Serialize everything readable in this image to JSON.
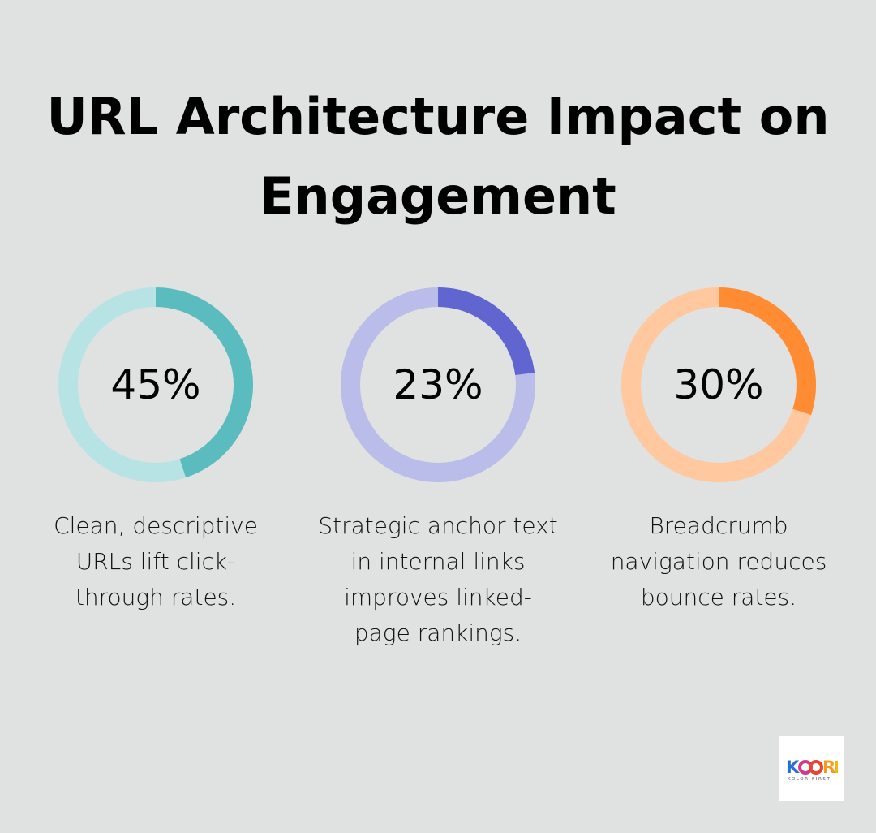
{
  "title": "URL Architecture Impact on Engagement",
  "chart_data": [
    {
      "type": "pie",
      "variant": "donut",
      "value": 45,
      "label": "45%",
      "caption": "Clean, descriptive URLs lift click-through rates.",
      "color": "#5bbcbf",
      "track_color": "#b8e3e5"
    },
    {
      "type": "pie",
      "variant": "donut",
      "value": 23,
      "label": "23%",
      "caption": "Strategic anchor text in internal links improves linked-page rankings.",
      "color": "#6065d0",
      "track_color": "#babde9"
    },
    {
      "type": "pie",
      "variant": "donut",
      "value": 30,
      "label": "30%",
      "caption": "Breadcrumb navigation reduces bounce rates.",
      "color": "#ff8c33",
      "track_color": "#ffc89e"
    }
  ],
  "logo": {
    "text": "KOORI",
    "tagline": "KOLOR FIRST"
  },
  "background": "#e0e2e1"
}
